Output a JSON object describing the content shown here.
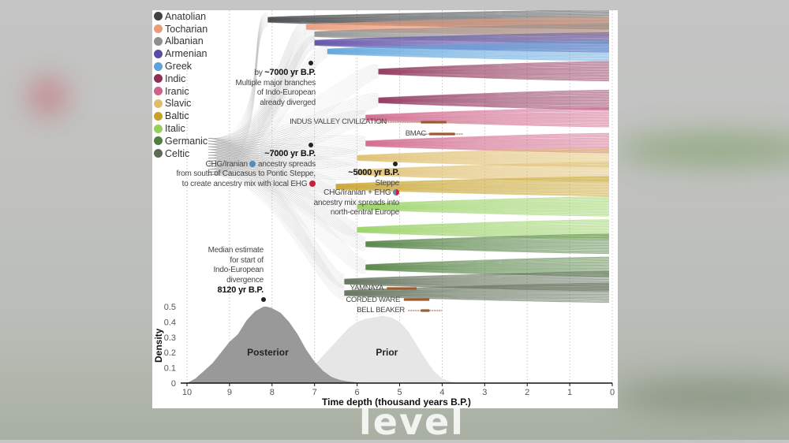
{
  "watermark": "level",
  "legend": [
    {
      "label": "Anatolian",
      "color": "#3f4346"
    },
    {
      "label": "Tocharian",
      "color": "#ec9a78"
    },
    {
      "label": "Albanian",
      "color": "#8e8e8e"
    },
    {
      "label": "Armenian",
      "color": "#5b4aa6"
    },
    {
      "label": "Greek",
      "color": "#5aa3dc"
    },
    {
      "label": "Indic",
      "color": "#8c2f55"
    },
    {
      "label": "Iranic",
      "color": "#cf6289"
    },
    {
      "label": "Slavic",
      "color": "#dfbd6c"
    },
    {
      "label": "Baltic",
      "color": "#c6a22a"
    },
    {
      "label": "Italic",
      "color": "#95cf5f"
    },
    {
      "label": "Germanic",
      "color": "#4f7e3e"
    },
    {
      "label": "Celtic",
      "color": "#5c6b55"
    }
  ],
  "annotations": {
    "a7000_branches": {
      "bold": "~7000 yr B.P.",
      "prefix": "by ",
      "lines": [
        "Multiple major branches",
        "of Indo-European",
        "already diverged"
      ]
    },
    "a7000_chg": {
      "bold": "~7000 yr B.P.",
      "line1_pre": "CHG/Iranian ",
      "line1_post": " ancestry spreads",
      "line2": "from south of Caucasus to Pontic Steppe,",
      "line3": "to create ancestry mix with local EHG"
    },
    "a5000_steppe": {
      "bold": "~5000 yr B.P.",
      "line1": "Steppe",
      "line2": "CHG/Iranian + EHG ",
      "line3": "ancestry mix spreads into",
      "line4": "north-central Europe"
    },
    "median": {
      "lines": [
        "Median estimate",
        "for start of",
        "Indo-European",
        "divergence"
      ],
      "bold": "8120 yr B.P."
    }
  },
  "chart_data": {
    "type": "area",
    "title": "",
    "xlabel": "Time depth (thousand years B.P.)",
    "ylabel": "Density",
    "xlim": [
      10,
      0
    ],
    "ylim": [
      0,
      0.5
    ],
    "x_ticks": [
      "10",
      "9",
      "8",
      "7",
      "6",
      "5",
      "4",
      "3",
      "2",
      "1",
      "0"
    ],
    "y_ticks": [
      "0",
      "0.1",
      "0.2",
      "0.3",
      "0.4",
      "0.5"
    ],
    "grid": "vertical dotted",
    "series": [
      {
        "name": "Posterior",
        "color": "#999999",
        "x": [
          10,
          9.8,
          9.6,
          9.4,
          9.2,
          9.0,
          8.8,
          8.6,
          8.4,
          8.2,
          8.12,
          8.0,
          7.8,
          7.6,
          7.4,
          7.2,
          7.0,
          6.8,
          6.6,
          6.4,
          6.2,
          6.0,
          5.8
        ],
        "y": [
          0,
          0.03,
          0.08,
          0.13,
          0.2,
          0.27,
          0.32,
          0.41,
          0.47,
          0.5,
          0.5,
          0.49,
          0.46,
          0.4,
          0.32,
          0.22,
          0.14,
          0.08,
          0.04,
          0.02,
          0.01,
          0.005,
          0
        ]
      },
      {
        "name": "Prior",
        "color": "#e6e6e6",
        "x": [
          7.2,
          7.0,
          6.8,
          6.6,
          6.4,
          6.2,
          6.0,
          5.8,
          5.6,
          5.4,
          5.2,
          5.0,
          4.8,
          4.6,
          4.4,
          4.2,
          4.0,
          3.8,
          3.6
        ],
        "y": [
          0,
          0.12,
          0.18,
          0.24,
          0.3,
          0.36,
          0.4,
          0.42,
          0.43,
          0.44,
          0.43,
          0.4,
          0.34,
          0.25,
          0.16,
          0.08,
          0.03,
          0.01,
          0
        ]
      }
    ],
    "series_labels": [
      "Posterior",
      "Prior"
    ],
    "median_start": 8.12,
    "cultures": [
      {
        "label": "INDUS VALLEY CIVILIZATION",
        "core": [
          4.5,
          3.9
        ],
        "range": [
          5.5,
          3.3
        ]
      },
      {
        "label": "BMAC",
        "core": [
          4.3,
          3.7
        ],
        "range": [
          4.5,
          3.5
        ]
      },
      {
        "label": "YAMNAYA",
        "core": [
          5.3,
          4.6
        ],
        "range": [
          5.3,
          4.6
        ]
      },
      {
        "label": "CORDED WARE",
        "core": [
          4.9,
          4.3
        ],
        "range": [
          4.9,
          4.3
        ]
      },
      {
        "label": "BELL BEAKER",
        "core": [
          4.5,
          4.3
        ],
        "range": [
          4.8,
          4.0
        ]
      }
    ],
    "tree_branches": [
      {
        "name": "Anatolian",
        "color": "#3f4346",
        "start": 8.1,
        "end_y": [
          0.02
        ]
      },
      {
        "name": "Tocharian",
        "color": "#ec9a78",
        "start": 7.2,
        "end_y": [
          0.045
        ]
      },
      {
        "name": "Albanian",
        "color": "#8e8e8e",
        "start": 7.0,
        "end_y": [
          0.07
        ]
      },
      {
        "name": "Armenian",
        "color": "#5b4aa6",
        "start": 7.0,
        "end_y": [
          0.1
        ]
      },
      {
        "name": "Greek",
        "color": "#5aa3dc",
        "start": 6.7,
        "end_y": [
          0.13
        ]
      },
      {
        "name": "Indic",
        "color": "#8c2f55",
        "start": 5.5,
        "end_y": [
          0.2,
          0.3
        ]
      },
      {
        "name": "Iranic",
        "color": "#cf6289",
        "start": 5.8,
        "end_y": [
          0.36,
          0.45
        ]
      },
      {
        "name": "Slavic",
        "color": "#dfbd6c",
        "start": 6.0,
        "end_y": [
          0.5,
          0.55
        ]
      },
      {
        "name": "Baltic",
        "color": "#c6a22a",
        "start": 6.5,
        "end_y": [
          0.6
        ]
      },
      {
        "name": "Italic",
        "color": "#95cf5f",
        "start": 6.0,
        "end_y": [
          0.67,
          0.75
        ]
      },
      {
        "name": "Germanic",
        "color": "#4f7e3e",
        "start": 5.8,
        "end_y": [
          0.8,
          0.88
        ]
      },
      {
        "name": "Celtic",
        "color": "#5c6b55",
        "start": 6.3,
        "end_y": [
          0.93,
          0.97
        ]
      }
    ]
  }
}
